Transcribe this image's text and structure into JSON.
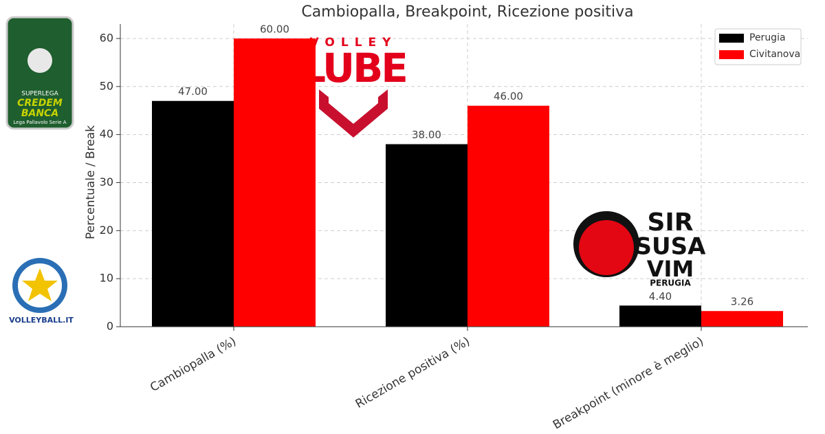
{
  "chart_data": {
    "type": "bar",
    "title": "Cambiopalla, Breakpoint, Ricezione positiva",
    "ylabel": "Percentuale / Break",
    "categories": [
      "Cambiopalla (%)",
      "Ricezione positiva (%)",
      "Breakpoint (minore è meglio)"
    ],
    "series": [
      {
        "name": "Perugia",
        "color": "#000000",
        "values": [
          47,
          38,
          4.4
        ],
        "value_labels": [
          "47.00",
          "38.00",
          "4.40"
        ]
      },
      {
        "name": "Civitanova",
        "color": "#ff0000",
        "values": [
          60,
          46,
          3.26
        ],
        "value_labels": [
          "60.00",
          "46.00",
          "3.26"
        ]
      }
    ],
    "ylim": [
      0,
      63
    ],
    "yticks": [
      0,
      10,
      20,
      30,
      40,
      50,
      60
    ],
    "grid": true,
    "legend": "upper right"
  },
  "logos": {
    "superlega": [
      "SUPERLEGA",
      "CREDEM",
      "BANCA",
      "Lega Pallavolo Serie A"
    ],
    "lube": [
      "VOLLEY",
      "LUBE"
    ],
    "sir": [
      "SIR",
      "SUSA",
      "VIM",
      "PERUGIA"
    ],
    "volleyball": "VOLLEYBALL.IT"
  }
}
